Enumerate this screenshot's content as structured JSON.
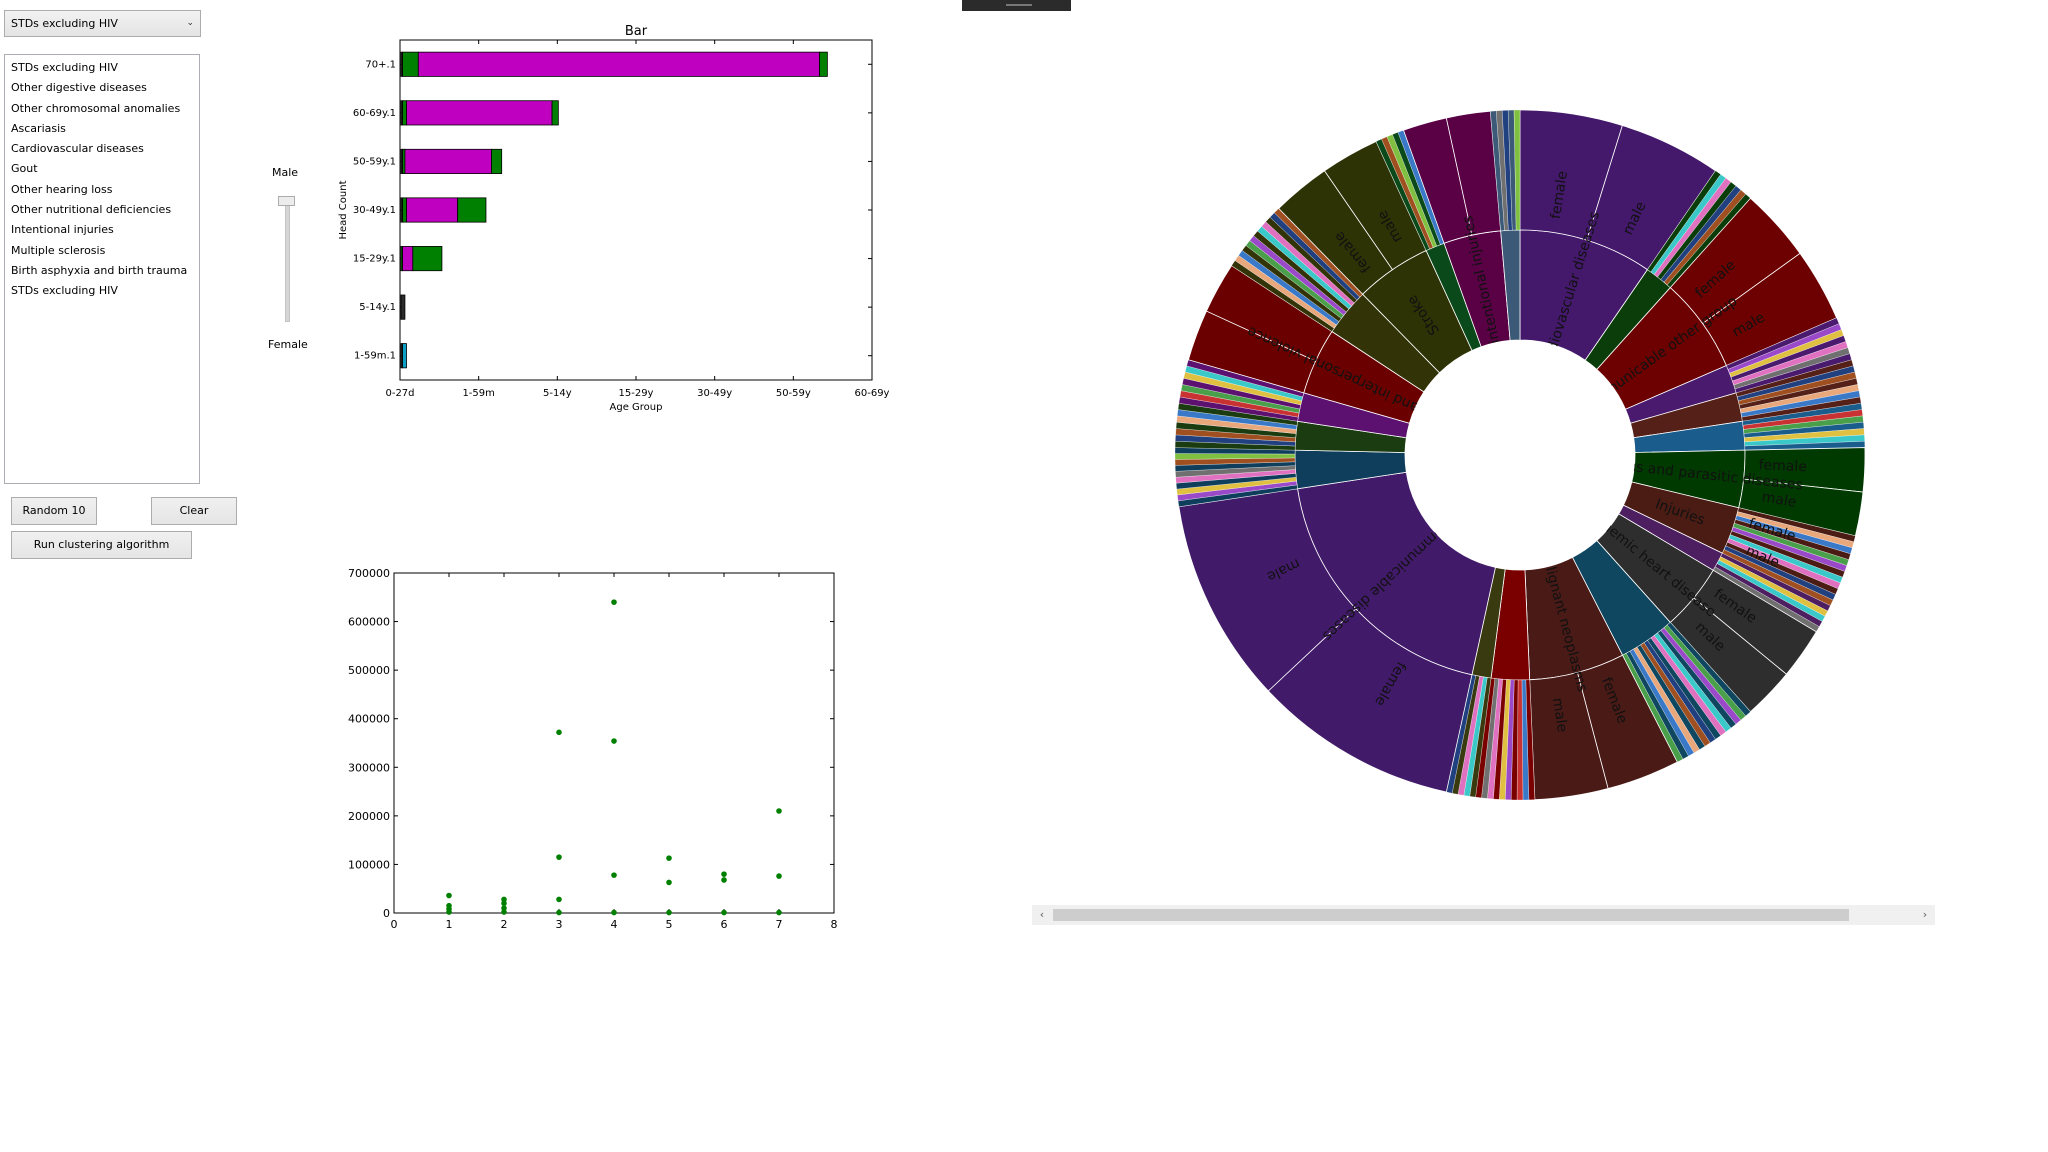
{
  "combo": {
    "selected": "STDs excluding HIV"
  },
  "listbox": {
    "items": [
      "STDs excluding HIV",
      "Other digestive diseases",
      "Other chromosomal anomalies",
      "Ascariasis",
      "Cardiovascular diseases",
      "Gout",
      "Other hearing loss",
      "Other nutritional deficiencies",
      "Intentional injuries",
      "Multiple sclerosis",
      "Birth asphyxia and birth trauma",
      "STDs excluding HIV"
    ]
  },
  "slider": {
    "top_label": "Male",
    "bottom_label": "Female",
    "value": 1.0
  },
  "buttons": {
    "random": "Random 10",
    "clear": "Clear",
    "cluster": "Run clustering algorithm"
  },
  "chart_data": [
    {
      "type": "bar",
      "orientation": "horizontal",
      "stacked": true,
      "title": "Bar",
      "xlabel": "Age Group",
      "ylabel": "Head Count",
      "categories": [
        "1-59m.1",
        "5-14y.1",
        "15-29y.1",
        "30-49y.1",
        "50-59y.1",
        "60-69y.1",
        "70+.1"
      ],
      "xticks": [
        "0-27d",
        "1-59m",
        "5-14y",
        "15-29y",
        "30-49y",
        "50-59y",
        "60-69y"
      ],
      "xlim": [
        0,
        6
      ],
      "series": [
        {
          "color": "#2b2b2b",
          "values": [
            0.02,
            0.05,
            0,
            0.02,
            0.02,
            0.02,
            0.02
          ]
        },
        {
          "color": "#0aa0c8",
          "values": [
            0.05,
            0,
            0,
            0,
            0,
            0,
            0
          ]
        },
        {
          "color": "#008000",
          "values": [
            0,
            0,
            0.02,
            0.05,
            0.03,
            0.05,
            0.2
          ]
        },
        {
          "color": "#c000c0",
          "values": [
            0,
            0,
            0.13,
            0.65,
            1.1,
            1.85,
            5.1
          ]
        },
        {
          "color": "#008000",
          "values": [
            0,
            0,
            0.37,
            0.36,
            0.13,
            0.08,
            0.1
          ]
        }
      ]
    },
    {
      "type": "scatter",
      "xlim": [
        0,
        8
      ],
      "ylim": [
        0,
        700000
      ],
      "xticks": [
        0,
        1,
        2,
        3,
        4,
        5,
        6,
        7,
        8
      ],
      "yticks": [
        0,
        100000,
        200000,
        300000,
        400000,
        500000,
        600000,
        700000
      ],
      "color": "#008000",
      "points": [
        [
          1,
          36000
        ],
        [
          1,
          15000
        ],
        [
          1,
          8000
        ],
        [
          1,
          2000
        ],
        [
          2,
          28000
        ],
        [
          2,
          20000
        ],
        [
          2,
          10000
        ],
        [
          2,
          2000
        ],
        [
          3,
          372000
        ],
        [
          3,
          115000
        ],
        [
          3,
          28000
        ],
        [
          3,
          1000
        ],
        [
          4,
          640000
        ],
        [
          4,
          354000
        ],
        [
          4,
          78000
        ],
        [
          4,
          1000
        ],
        [
          5,
          113000
        ],
        [
          5,
          63000
        ],
        [
          5,
          1000
        ],
        [
          6,
          80000
        ],
        [
          6,
          68000
        ],
        [
          6,
          1000
        ],
        [
          7,
          210000
        ],
        [
          7,
          76000
        ],
        [
          7,
          1000
        ]
      ]
    },
    {
      "type": "sunburst",
      "inner_segments": [
        {
          "label": "Cardiovascular diseases",
          "color": "#44186b",
          "value": 14
        },
        {
          "label": "",
          "color": "#0b3d0b",
          "value": 3
        },
        {
          "label": "Communicable other group",
          "color": "#6d0000",
          "value": 10
        },
        {
          "label": "",
          "color": "#4a1a6e",
          "value": 3
        },
        {
          "label": "",
          "color": "#552018",
          "value": 3
        },
        {
          "label": "",
          "color": "#1a5c8c",
          "value": 3
        },
        {
          "label": "Infectious and parasitic diseases",
          "color": "#003a00",
          "value": 6
        },
        {
          "label": "Injuries",
          "color": "#4a1c14",
          "value": 5
        },
        {
          "label": "",
          "color": "#4d1e60",
          "value": 2
        },
        {
          "label": "Ischemic heart disease",
          "color": "#2e2e2e",
          "value": 7
        },
        {
          "label": "",
          "color": "#0f4660",
          "value": 6
        },
        {
          "label": "Malignant neoplasms",
          "color": "#4a1a16",
          "value": 10
        },
        {
          "label": "",
          "color": "#7a0000",
          "value": 4
        },
        {
          "label": "",
          "color": "#3a3a10",
          "value": 2
        },
        {
          "label": "Noncommunicable diseases",
          "color": "#421a6a",
          "value": 28
        },
        {
          "label": "",
          "color": "#0e3e5c",
          "value": 4
        },
        {
          "label": "",
          "color": "#1a3c10",
          "value": 3
        },
        {
          "label": "",
          "color": "#5c1070",
          "value": 3
        },
        {
          "label": "Self-harm and interpersonal violence",
          "color": "#6a0000",
          "value": 7
        },
        {
          "label": "",
          "color": "#333308",
          "value": 5
        },
        {
          "label": "Stroke",
          "color": "#2e3306",
          "value": 8
        },
        {
          "label": "",
          "color": "#0a4a1a",
          "value": 2
        },
        {
          "label": "Unintentional injuries",
          "color": "#5a0045",
          "value": 6
        },
        {
          "label": "",
          "color": "#3c5a78",
          "value": 2
        }
      ],
      "outer_labels": [
        {
          "text": "female",
          "segment": "Cardiovascular diseases",
          "half": 0
        },
        {
          "text": "male",
          "segment": "Cardiovascular diseases",
          "half": 1
        },
        {
          "text": "female",
          "segment": "Communicable other group",
          "half": 0
        },
        {
          "text": "male",
          "segment": "Communicable other group",
          "half": 1
        },
        {
          "text": "female",
          "segment": "Infectious and parasitic diseases",
          "half": 0
        },
        {
          "text": "male",
          "segment": "Infectious and parasitic diseases",
          "half": 1
        },
        {
          "text": "female",
          "segment": "Injuries",
          "half": 0
        },
        {
          "text": "male",
          "segment": "Injuries",
          "half": 1
        },
        {
          "text": "female",
          "segment": "Ischemic heart disease",
          "half": 0
        },
        {
          "text": "male",
          "segment": "Ischemic heart disease",
          "half": 1
        },
        {
          "text": "female",
          "segment": "Malignant neoplasms",
          "half": 0
        },
        {
          "text": "male",
          "segment": "Malignant neoplasms",
          "half": 1
        },
        {
          "text": "female",
          "segment": "Noncommunicable diseases",
          "half": 0
        },
        {
          "text": "male",
          "segment": "Noncommunicable diseases",
          "half": 1
        },
        {
          "text": "female",
          "segment": "Stroke",
          "half": 0
        },
        {
          "text": "male",
          "segment": "Stroke",
          "half": 1
        }
      ],
      "thin_slice_palette": [
        "#e8a87c",
        "#3a78c8",
        "#c83232",
        "#4aa04a",
        "#9a4ac8",
        "#e0c040",
        "#3ac8c8",
        "#e070c0",
        "#707070",
        "#204080",
        "#a05020",
        "#80c040"
      ]
    }
  ],
  "scrollbar": {
    "left_arrow": "‹",
    "right_arrow": "›",
    "position": 0.03
  }
}
